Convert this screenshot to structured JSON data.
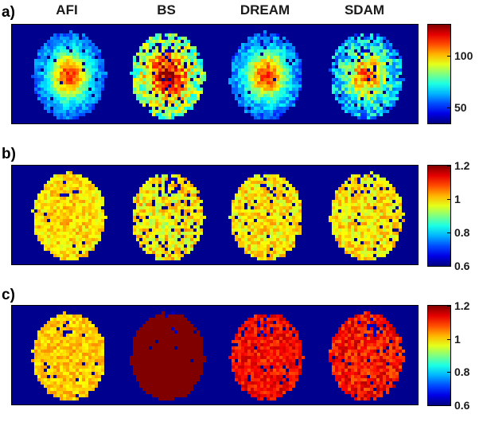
{
  "columns": [
    "AFI",
    "BS",
    "DREAM",
    "SDAM"
  ],
  "panels": [
    {
      "letter": "a)",
      "ticks": [
        {
          "label": "100",
          "value": 100
        },
        {
          "label": "50",
          "value": 50
        }
      ],
      "range": [
        35,
        130
      ],
      "maps": [
        {
          "method": "AFI",
          "center_value": 118,
          "edge_value": 50,
          "noise": 0.08,
          "dark_spots": 0.03
        },
        {
          "method": "BS",
          "center_value": 132,
          "edge_value": 78,
          "noise": 0.18,
          "dark_spots": 0.08
        },
        {
          "method": "DREAM",
          "center_value": 118,
          "edge_value": 50,
          "noise": 0.1,
          "dark_spots": 0.04
        },
        {
          "method": "SDAM",
          "center_value": 112,
          "edge_value": 58,
          "noise": 0.16,
          "dark_spots": 0.06
        }
      ]
    },
    {
      "letter": "b)",
      "ticks": [
        {
          "label": "1.2",
          "value": 1.2
        },
        {
          "label": "1",
          "value": 1.0
        },
        {
          "label": "0.8",
          "value": 0.8
        },
        {
          "label": "0.6",
          "value": 0.6
        }
      ],
      "range": [
        0.6,
        1.2
      ],
      "maps": [
        {
          "method": "AFI",
          "center_value": 1.02,
          "edge_value": 1.0,
          "noise": 0.08,
          "dark_spots": 0.03
        },
        {
          "method": "BS",
          "center_value": 0.98,
          "edge_value": 1.0,
          "noise": 0.12,
          "dark_spots": 0.1
        },
        {
          "method": "DREAM",
          "center_value": 1.0,
          "edge_value": 1.0,
          "noise": 0.1,
          "dark_spots": 0.06
        },
        {
          "method": "SDAM",
          "center_value": 1.0,
          "edge_value": 1.0,
          "noise": 0.1,
          "dark_spots": 0.07
        }
      ]
    },
    {
      "letter": "c)",
      "ticks": [
        {
          "label": "1.2",
          "value": 1.2
        },
        {
          "label": "1",
          "value": 1.0
        },
        {
          "label": "0.8",
          "value": 0.8
        },
        {
          "label": "0.6",
          "value": 0.6
        }
      ],
      "range": [
        0.6,
        1.2
      ],
      "maps": [
        {
          "method": "AFI",
          "center_value": 1.03,
          "edge_value": 1.02,
          "noise": 0.07,
          "dark_spots": 0.03
        },
        {
          "method": "BS",
          "center_value": 1.28,
          "edge_value": 1.28,
          "noise": 0.02,
          "dark_spots": 0.01
        },
        {
          "method": "DREAM",
          "center_value": 1.14,
          "edge_value": 1.16,
          "noise": 0.08,
          "dark_spots": 0.05
        },
        {
          "method": "SDAM",
          "center_value": 1.14,
          "edge_value": 1.15,
          "noise": 0.1,
          "dark_spots": 0.06
        }
      ]
    }
  ],
  "colors": {
    "background": "#00008f",
    "colormap": "jet"
  }
}
